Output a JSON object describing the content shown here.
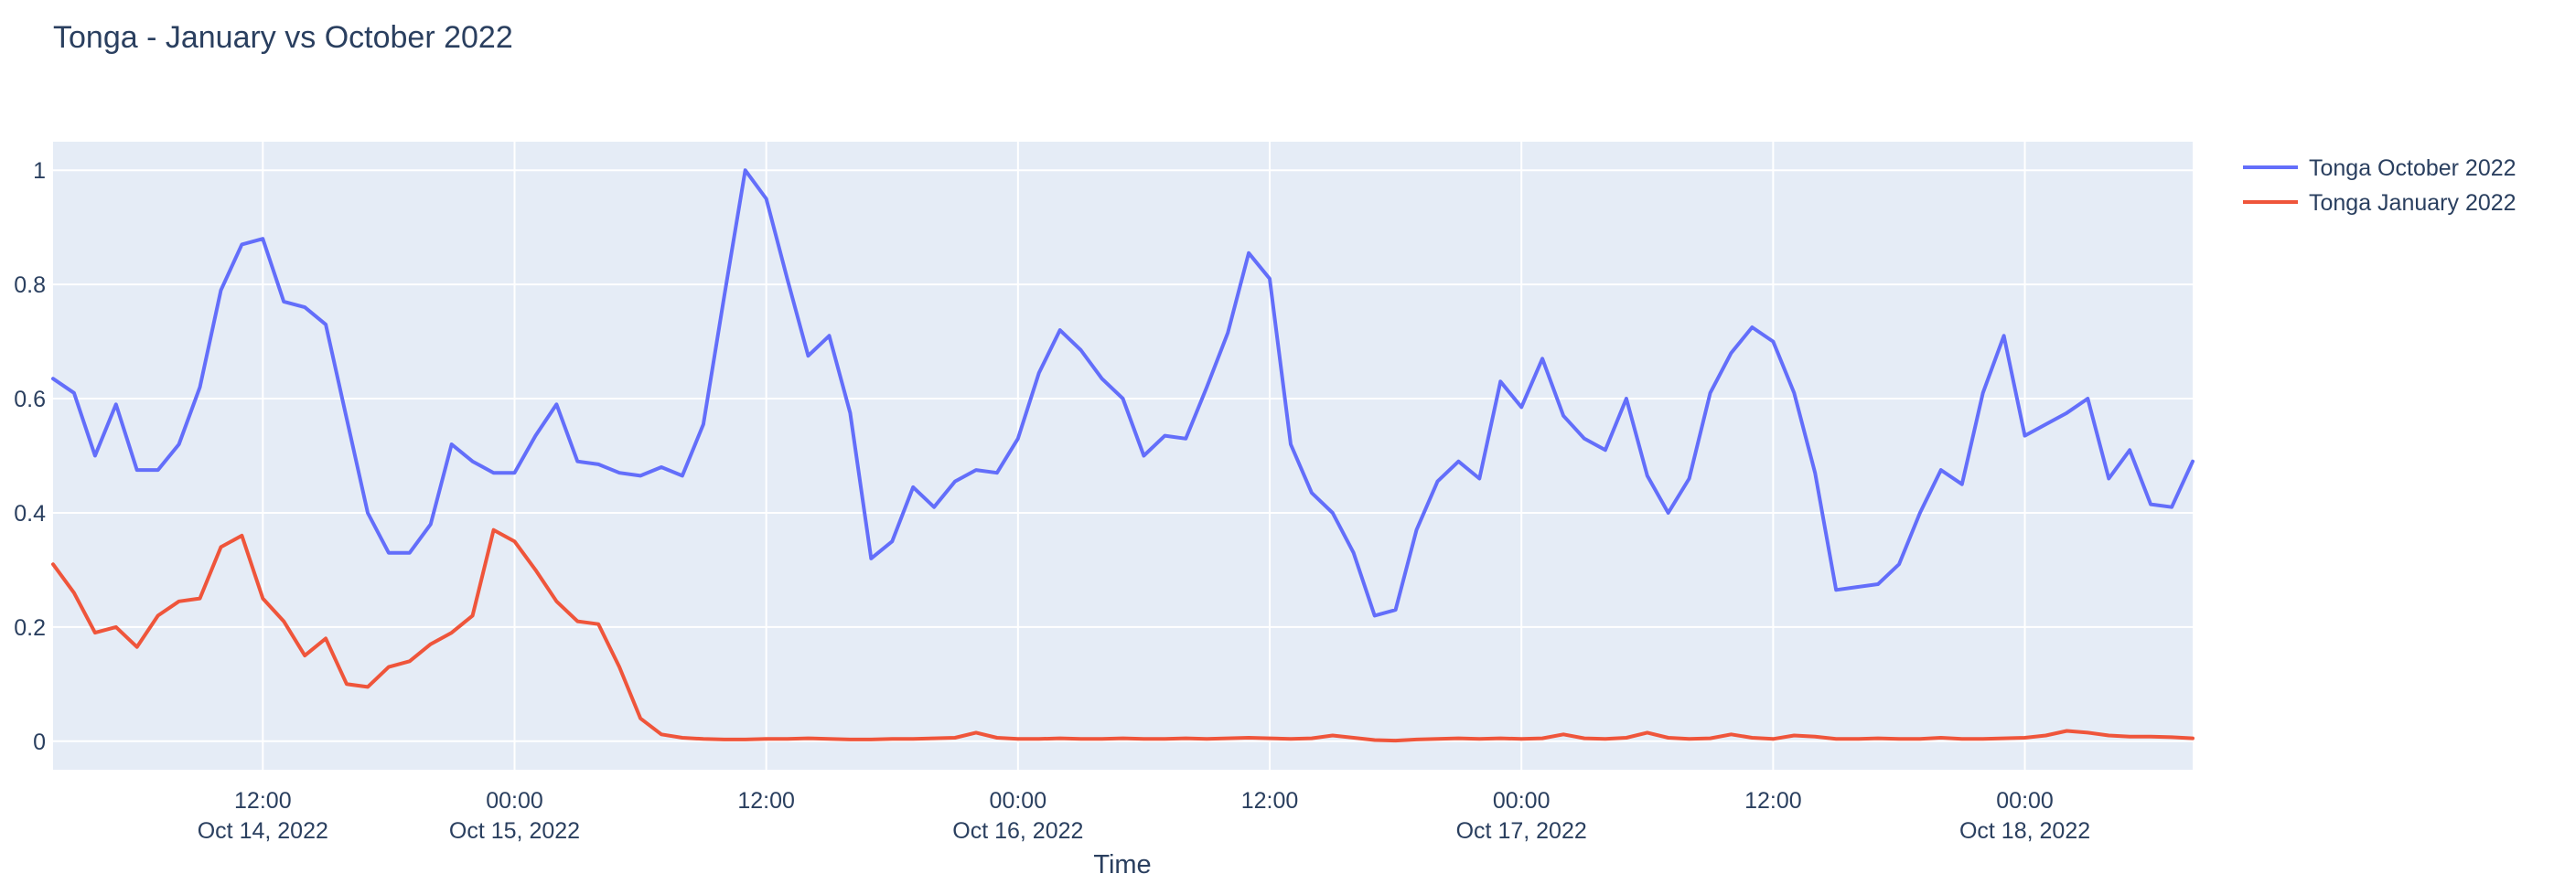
{
  "page_title": "Tonga - January vs October 2022",
  "colors": {
    "page_background": "#ffffff",
    "plot_background": "#e5ecf6",
    "grid": "#ffffff",
    "text": "#2a3f5f",
    "series_october": "#636efa",
    "series_january": "#ef553b"
  },
  "legend": {
    "items": [
      {
        "label": "Tonga October 2022",
        "color": "#636efa"
      },
      {
        "label": "Tonga January 2022",
        "color": "#ef553b"
      }
    ]
  },
  "chart_data": {
    "type": "line",
    "title": "Tonga - January vs October 2022",
    "xlabel": "Time",
    "ylabel": "",
    "grid": true,
    "legend_position": "top-right-outside",
    "x_unit": "hours since 2022-10-14 00:00",
    "x_range": [
      2,
      104
    ],
    "y_range": [
      -0.05,
      1.05
    ],
    "y_ticks": [
      0,
      0.2,
      0.4,
      0.6,
      0.8,
      1
    ],
    "x_ticks": [
      {
        "hour": 12,
        "lines": [
          "12:00",
          "Oct 14, 2022"
        ]
      },
      {
        "hour": 24,
        "lines": [
          "00:00",
          "Oct 15, 2022"
        ]
      },
      {
        "hour": 36,
        "lines": [
          "12:00"
        ]
      },
      {
        "hour": 48,
        "lines": [
          "00:00",
          "Oct 16, 2022"
        ]
      },
      {
        "hour": 60,
        "lines": [
          "12:00"
        ]
      },
      {
        "hour": 72,
        "lines": [
          "00:00",
          "Oct 17, 2022"
        ]
      },
      {
        "hour": 84,
        "lines": [
          "12:00"
        ]
      },
      {
        "hour": 96,
        "lines": [
          "00:00",
          "Oct 18, 2022"
        ]
      }
    ],
    "series": [
      {
        "name": "Tonga October 2022",
        "color": "#636efa",
        "x": [
          2,
          3,
          4,
          5,
          6,
          7,
          8,
          9,
          10,
          11,
          12,
          13,
          14,
          15,
          16,
          17,
          18,
          19,
          20,
          21,
          22,
          23,
          24,
          25,
          26,
          27,
          28,
          29,
          30,
          31,
          32,
          33,
          34,
          35,
          36,
          37,
          38,
          39,
          40,
          41,
          42,
          43,
          44,
          45,
          46,
          47,
          48,
          49,
          50,
          51,
          52,
          53,
          54,
          55,
          56,
          57,
          58,
          59,
          60,
          61,
          62,
          63,
          64,
          65,
          66,
          67,
          68,
          69,
          70,
          71,
          72,
          73,
          74,
          75,
          76,
          77,
          78,
          79,
          80,
          81,
          82,
          83,
          84,
          85,
          86,
          87,
          88,
          89,
          90,
          91,
          92,
          93,
          94,
          95,
          96,
          97,
          98,
          99,
          100,
          101,
          102,
          103,
          104
        ],
        "y": [
          0.635,
          0.61,
          0.5,
          0.59,
          0.475,
          0.475,
          0.52,
          0.62,
          0.79,
          0.87,
          0.88,
          0.77,
          0.76,
          0.73,
          0.565,
          0.4,
          0.33,
          0.33,
          0.38,
          0.52,
          0.49,
          0.47,
          0.47,
          0.535,
          0.59,
          0.49,
          0.485,
          0.47,
          0.465,
          0.48,
          0.465,
          0.555,
          0.78,
          1.0,
          0.95,
          0.81,
          0.675,
          0.71,
          0.575,
          0.32,
          0.35,
          0.445,
          0.41,
          0.455,
          0.475,
          0.47,
          0.53,
          0.645,
          0.72,
          0.685,
          0.635,
          0.6,
          0.5,
          0.535,
          0.53,
          0.62,
          0.715,
          0.855,
          0.81,
          0.52,
          0.435,
          0.4,
          0.33,
          0.22,
          0.23,
          0.37,
          0.455,
          0.49,
          0.46,
          0.63,
          0.585,
          0.67,
          0.57,
          0.53,
          0.51,
          0.6,
          0.465,
          0.4,
          0.46,
          0.61,
          0.68,
          0.725,
          0.7,
          0.61,
          0.47,
          0.265,
          0.27,
          0.275,
          0.31,
          0.4,
          0.475,
          0.45,
          0.61,
          0.71,
          0.535,
          0.555,
          0.575,
          0.6,
          0.46,
          0.51,
          0.415,
          0.41,
          0.49
        ]
      },
      {
        "name": "Tonga January 2022",
        "color": "#ef553b",
        "x": [
          2,
          3,
          4,
          5,
          6,
          7,
          8,
          9,
          10,
          11,
          12,
          13,
          14,
          15,
          16,
          17,
          18,
          19,
          20,
          21,
          22,
          23,
          24,
          25,
          26,
          27,
          28,
          29,
          30,
          31,
          32,
          33,
          34,
          35,
          36,
          37,
          38,
          39,
          40,
          41,
          42,
          43,
          44,
          45,
          46,
          47,
          48,
          49,
          50,
          51,
          52,
          53,
          54,
          55,
          56,
          57,
          58,
          59,
          60,
          61,
          62,
          63,
          64,
          65,
          66,
          67,
          68,
          69,
          70,
          71,
          72,
          73,
          74,
          75,
          76,
          77,
          78,
          79,
          80,
          81,
          82,
          83,
          84,
          85,
          86,
          87,
          88,
          89,
          90,
          91,
          92,
          93,
          94,
          95,
          96,
          97,
          98,
          99,
          100,
          101,
          102,
          103,
          104
        ],
        "y": [
          0.31,
          0.26,
          0.19,
          0.2,
          0.165,
          0.22,
          0.245,
          0.25,
          0.34,
          0.36,
          0.25,
          0.21,
          0.15,
          0.18,
          0.1,
          0.095,
          0.13,
          0.14,
          0.17,
          0.19,
          0.22,
          0.37,
          0.35,
          0.3,
          0.245,
          0.21,
          0.205,
          0.13,
          0.04,
          0.012,
          0.006,
          0.004,
          0.003,
          0.003,
          0.004,
          0.004,
          0.005,
          0.004,
          0.003,
          0.003,
          0.004,
          0.004,
          0.005,
          0.006,
          0.015,
          0.006,
          0.004,
          0.004,
          0.005,
          0.004,
          0.004,
          0.005,
          0.004,
          0.004,
          0.005,
          0.004,
          0.005,
          0.006,
          0.005,
          0.004,
          0.005,
          0.01,
          0.006,
          0.002,
          0.001,
          0.003,
          0.004,
          0.005,
          0.004,
          0.005,
          0.004,
          0.005,
          0.012,
          0.005,
          0.004,
          0.006,
          0.015,
          0.006,
          0.004,
          0.005,
          0.012,
          0.006,
          0.004,
          0.01,
          0.008,
          0.004,
          0.004,
          0.005,
          0.004,
          0.004,
          0.006,
          0.004,
          0.004,
          0.005,
          0.006,
          0.01,
          0.018,
          0.015,
          0.01,
          0.008,
          0.008,
          0.007,
          0.005
        ]
      }
    ]
  }
}
